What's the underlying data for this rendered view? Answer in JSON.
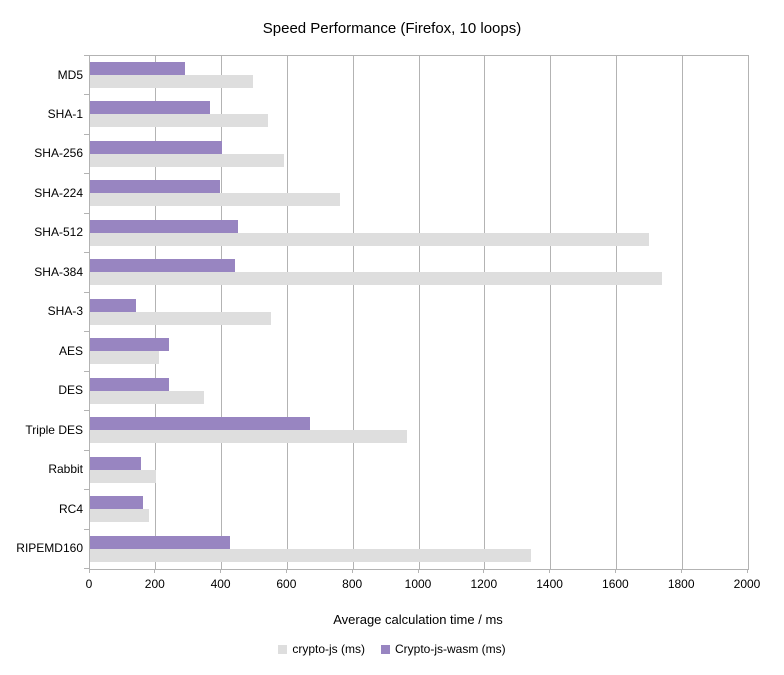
{
  "title": "Speed Performance (Firefox, 10 loops)",
  "colors": {
    "grid": "#b3b3b3",
    "text": "#000000",
    "crypto_js": "#dedede",
    "crypto_js_wasm": "#9885c1",
    "background": "#ffffff"
  },
  "chart_data": {
    "type": "bar",
    "orientation": "horizontal",
    "title": "Speed Performance (Firefox, 10 loops)",
    "xlabel": "Average calculation time / ms",
    "ylabel": "",
    "xlim": [
      0,
      2000
    ],
    "xticks": [
      0,
      200,
      400,
      600,
      800,
      1000,
      1200,
      1400,
      1600,
      1800,
      2000
    ],
    "grid": true,
    "legend_position": "bottom",
    "categories": [
      "MD5",
      "SHA-1",
      "SHA-256",
      "SHA-224",
      "SHA-512",
      "SHA-384",
      "SHA-3",
      "AES",
      "DES",
      "Triple DES",
      "Rabbit",
      "RC4",
      "RIPEMD160"
    ],
    "series": [
      {
        "name": "crypto-js (ms)",
        "color": "#dedede",
        "values": [
          495,
          540,
          590,
          760,
          1700,
          1740,
          550,
          210,
          345,
          965,
          200,
          180,
          1340
        ]
      },
      {
        "name": "Crypto-js-wasm (ms)",
        "color": "#9885c1",
        "values": [
          290,
          365,
          400,
          395,
          450,
          440,
          140,
          240,
          240,
          670,
          155,
          160,
          425
        ]
      }
    ]
  }
}
